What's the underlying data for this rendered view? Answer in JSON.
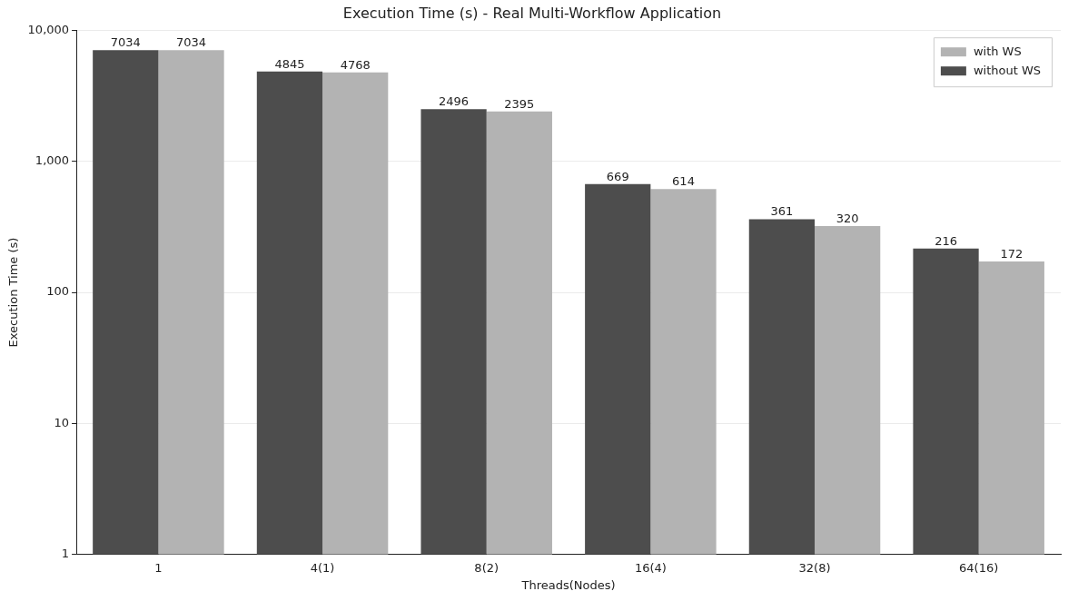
{
  "chart_data": {
    "type": "bar",
    "title": "Execution Time (s) - Real Multi-Workflow Application",
    "xlabel": "Threads(Nodes)",
    "ylabel": "Execution Time (s)",
    "categories": [
      "1",
      "4(1)",
      "8(2)",
      "16(4)",
      "32(8)",
      "64(16)"
    ],
    "series": [
      {
        "name": "without WS",
        "color": "#4d4d4d",
        "values": [
          7034,
          4845,
          2496,
          669,
          361,
          216
        ]
      },
      {
        "name": "with WS",
        "color": "#b3b3b3",
        "values": [
          7034,
          4768,
          2395,
          614,
          320,
          172
        ]
      }
    ],
    "log": "y",
    "ylim": [
      1,
      10000
    ],
    "yticks": [
      1,
      10,
      100,
      {
        "value": 1000,
        "label": "1,000"
      },
      {
        "value": 10000,
        "label": "10,000"
      }
    ],
    "grid": "y",
    "legend": "top right",
    "data_labels": true
  }
}
